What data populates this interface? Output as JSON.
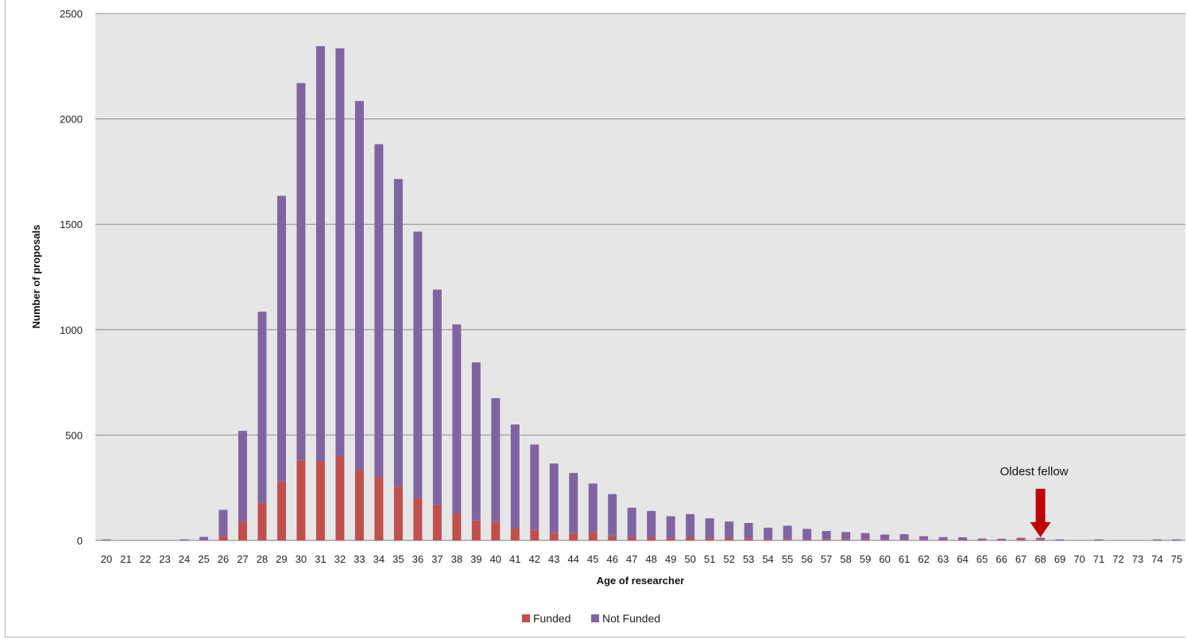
{
  "chart_data": {
    "type": "bar",
    "stacked": true,
    "xlabel": "Age of researcher",
    "ylabel": "Number of proposals",
    "ylim": [
      0,
      2500
    ],
    "yticks": [
      0,
      500,
      1000,
      1500,
      2000,
      2500
    ],
    "grid": true,
    "legend_position": "bottom",
    "categories": [
      "20",
      "21",
      "22",
      "23",
      "24",
      "25",
      "26",
      "27",
      "28",
      "29",
      "30",
      "31",
      "32",
      "33",
      "34",
      "35",
      "36",
      "37",
      "38",
      "39",
      "40",
      "41",
      "42",
      "43",
      "44",
      "45",
      "46",
      "47",
      "48",
      "49",
      "50",
      "51",
      "52",
      "53",
      "54",
      "55",
      "56",
      "57",
      "58",
      "59",
      "60",
      "61",
      "62",
      "63",
      "64",
      "65",
      "66",
      "67",
      "68",
      "69",
      "70",
      "71",
      "72",
      "73",
      "74",
      "75"
    ],
    "series": [
      {
        "name": "Funded",
        "color": "#c0504d",
        "values": [
          0,
          0,
          0,
          0,
          0,
          3,
          20,
          90,
          180,
          280,
          380,
          375,
          400,
          335,
          300,
          255,
          200,
          170,
          130,
          95,
          90,
          60,
          50,
          35,
          35,
          40,
          20,
          15,
          15,
          10,
          15,
          10,
          10,
          8,
          5,
          5,
          5,
          5,
          5,
          5,
          3,
          3,
          3,
          2,
          2,
          2,
          2,
          8,
          5,
          0,
          0,
          0,
          0,
          0,
          0,
          0
        ]
      },
      {
        "name": "Not Funded",
        "color": "#8064a2",
        "values": [
          5,
          0,
          0,
          0,
          5,
          14,
          125,
          430,
          905,
          1355,
          1790,
          1970,
          1935,
          1750,
          1580,
          1460,
          1265,
          1020,
          895,
          750,
          585,
          490,
          405,
          330,
          285,
          230,
          200,
          140,
          125,
          105,
          110,
          95,
          80,
          75,
          55,
          65,
          50,
          40,
          35,
          30,
          25,
          27,
          17,
          14,
          13,
          7,
          6,
          5,
          8,
          5,
          0,
          5,
          0,
          0,
          5,
          5
        ]
      }
    ],
    "annotations": [
      {
        "text": "Oldest fellow",
        "category": "68",
        "marker": "down-arrow",
        "color": "#c00000"
      }
    ]
  }
}
